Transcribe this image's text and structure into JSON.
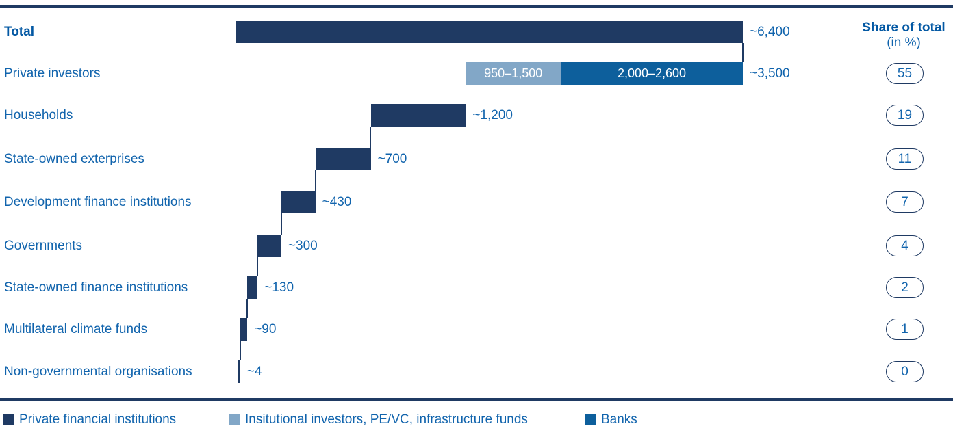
{
  "chart_data": {
    "type": "bar",
    "subtype": "horizontal-waterfall",
    "categories": [
      "Total",
      "Private investors",
      "Households",
      "State-owned exterprises",
      "Development finance institutions",
      "Governments",
      "State-owned finance institutions",
      "Multilateral climate funds",
      "Non-governmental organisations"
    ],
    "values": [
      6400,
      3500,
      1200,
      700,
      430,
      300,
      130,
      90,
      4
    ],
    "value_labels": [
      "~6,400",
      "~3,500",
      "~1,200",
      "~700",
      "~430",
      "~300",
      "~130",
      "~90",
      "~4"
    ],
    "shares_pct": [
      null,
      55,
      19,
      11,
      7,
      4,
      2,
      1,
      0
    ],
    "xlim": [
      0,
      6400
    ],
    "grid": false,
    "private_segments": [
      {
        "name": "Insitutional investors, PE/VC, infrastructure funds",
        "range_label": "950–1,500",
        "value": 1200,
        "color": "light_blue"
      },
      {
        "name": "Banks",
        "range_label": "2,000–2,600",
        "value": 2300,
        "color": "mid_blue"
      }
    ],
    "share_column": {
      "title": "Share of total",
      "unit": "(in %)"
    },
    "legend": [
      {
        "label": "Private financial institutions",
        "color": "navy"
      },
      {
        "label": "Insitutional investors, PE/VC, infrastructure funds",
        "color": "light_blue"
      },
      {
        "label": "Banks",
        "color": "mid_blue"
      }
    ],
    "colors": {
      "navy": "#1F3A63",
      "light_blue": "#82A7C7",
      "mid_blue": "#0D5F9C",
      "text_blue": "#1164AD",
      "text_bold_blue": "#0358A3"
    }
  }
}
